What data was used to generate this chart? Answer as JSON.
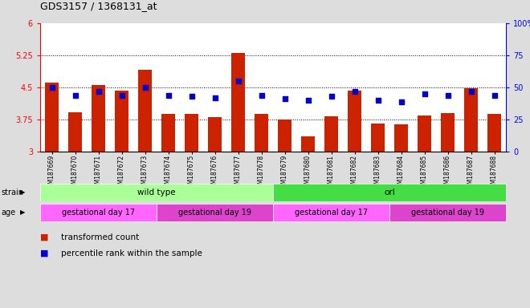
{
  "title": "GDS3157 / 1368131_at",
  "samples": [
    "GSM187669",
    "GSM187670",
    "GSM187671",
    "GSM187672",
    "GSM187673",
    "GSM187674",
    "GSM187675",
    "GSM187676",
    "GSM187677",
    "GSM187678",
    "GSM187679",
    "GSM187680",
    "GSM187681",
    "GSM187682",
    "GSM187683",
    "GSM187684",
    "GSM187685",
    "GSM187686",
    "GSM187687",
    "GSM187688"
  ],
  "bar_values": [
    4.62,
    3.92,
    4.55,
    4.42,
    4.92,
    3.88,
    3.88,
    3.8,
    5.3,
    3.88,
    3.75,
    3.35,
    3.82,
    4.42,
    3.65,
    3.64,
    3.84,
    3.9,
    4.48,
    3.88
  ],
  "blue_values": [
    50,
    44,
    47,
    44,
    50,
    44,
    43,
    42,
    55,
    44,
    41,
    40,
    43,
    47,
    40,
    39,
    45,
    44,
    47,
    44
  ],
  "bar_color": "#cc2200",
  "blue_color": "#0000cc",
  "ylim_left": [
    3.0,
    6.0
  ],
  "ylim_right": [
    0,
    100
  ],
  "yticks_left": [
    3.0,
    3.75,
    4.5,
    5.25,
    6.0
  ],
  "yticks_right": [
    0,
    25,
    50,
    75,
    100
  ],
  "ytick_labels_left": [
    "3",
    "3.75",
    "4.5",
    "5.25",
    "6"
  ],
  "ytick_labels_right": [
    "0",
    "25",
    "50",
    "75",
    "100%"
  ],
  "hlines": [
    3.75,
    4.5,
    5.25
  ],
  "strain_labels": [
    {
      "text": "wild type",
      "start": 0,
      "end": 9,
      "color": "#aaff99"
    },
    {
      "text": "orl",
      "start": 10,
      "end": 19,
      "color": "#44dd44"
    }
  ],
  "age_labels": [
    {
      "text": "gestational day 17",
      "start": 0,
      "end": 4,
      "color": "#ff66ff"
    },
    {
      "text": "gestational day 19",
      "start": 5,
      "end": 9,
      "color": "#dd44cc"
    },
    {
      "text": "gestational day 17",
      "start": 10,
      "end": 14,
      "color": "#ff66ff"
    },
    {
      "text": "gestational day 19",
      "start": 15,
      "end": 19,
      "color": "#dd44cc"
    }
  ],
  "legend_items": [
    {
      "color": "#cc2200",
      "label": "transformed count"
    },
    {
      "color": "#0000cc",
      "label": "percentile rank within the sample"
    }
  ],
  "bg_color": "#dddddd",
  "plot_bg": "#ffffff",
  "strain_row_color": "#cccccc",
  "age_row_color": "#cccccc"
}
